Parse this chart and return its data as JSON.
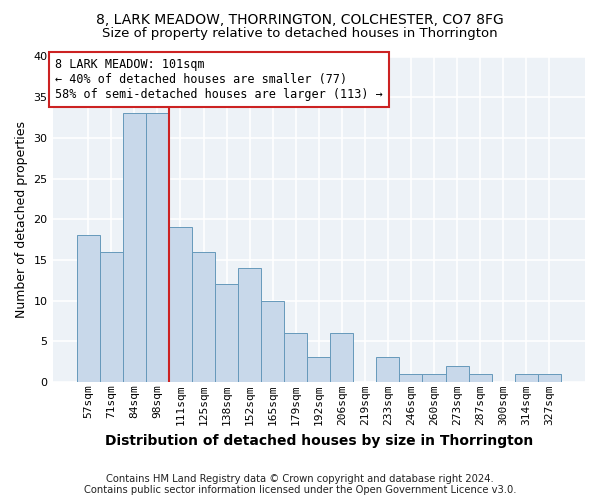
{
  "title1": "8, LARK MEADOW, THORRINGTON, COLCHESTER, CO7 8FG",
  "title2": "Size of property relative to detached houses in Thorrington",
  "xlabel": "Distribution of detached houses by size in Thorrington",
  "ylabel": "Number of detached properties",
  "categories": [
    "57sqm",
    "71sqm",
    "84sqm",
    "98sqm",
    "111sqm",
    "125sqm",
    "138sqm",
    "152sqm",
    "165sqm",
    "179sqm",
    "192sqm",
    "206sqm",
    "219sqm",
    "233sqm",
    "246sqm",
    "260sqm",
    "273sqm",
    "287sqm",
    "300sqm",
    "314sqm",
    "327sqm"
  ],
  "values": [
    18,
    16,
    33,
    33,
    19,
    16,
    12,
    14,
    10,
    6,
    3,
    6,
    0,
    3,
    1,
    1,
    2,
    1,
    0,
    1,
    1
  ],
  "bar_color": "#c8d8ea",
  "bar_edge_color": "#6699bb",
  "vline_x": 3.5,
  "vline_color": "#cc2222",
  "annotation_text_line1": "8 LARK MEADOW: 101sqm",
  "annotation_text_line2": "← 40% of detached houses are smaller (77)",
  "annotation_text_line3": "58% of semi-detached houses are larger (113) →",
  "annotation_box_facecolor": "white",
  "annotation_box_edgecolor": "#cc2222",
  "footnote1": "Contains HM Land Registry data © Crown copyright and database right 2024.",
  "footnote2": "Contains public sector information licensed under the Open Government Licence v3.0.",
  "background_color": "#edf2f7",
  "grid_color": "white",
  "ylim": [
    0,
    40
  ],
  "title1_fontsize": 10,
  "title2_fontsize": 9.5,
  "xlabel_fontsize": 10,
  "ylabel_fontsize": 9,
  "tick_fontsize": 8,
  "annotation_fontsize": 8.5,
  "footnote_fontsize": 7.2
}
